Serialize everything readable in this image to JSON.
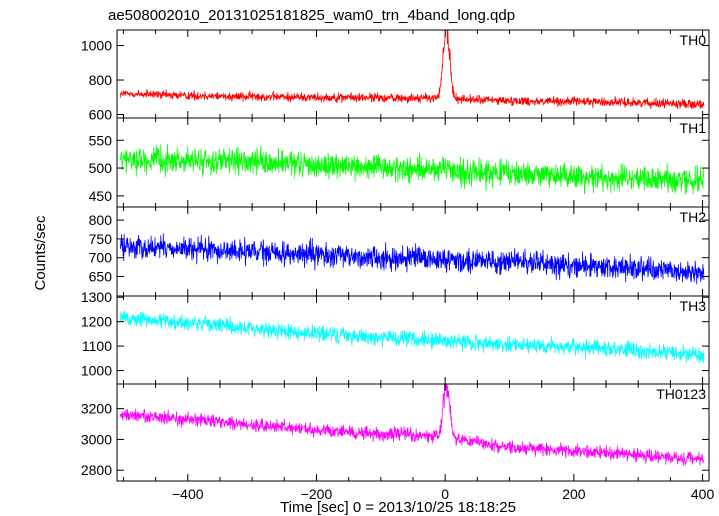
{
  "chart_data": {
    "type": "line",
    "title": "ae508002010_20131025181825_wam0_trn_4band_long.qdp",
    "xlabel": "Time [sec] 0 = 2013/10/25 18:18:25",
    "ylabel": "Counts/sec",
    "xlim": [
      -510,
      410
    ],
    "xticks": [
      -400,
      -200,
      0,
      200,
      400
    ],
    "grid": false,
    "panels": [
      {
        "name": "TH0",
        "color": "#ff0000",
        "ylim": [
          580,
          1090
        ],
        "yticks": [
          600,
          800,
          1000
        ],
        "baseline": [
          [
            -500,
            720
          ],
          [
            -400,
            710
          ],
          [
            -200,
            700
          ],
          [
            -20,
            695
          ],
          [
            100,
            680
          ],
          [
            300,
            670
          ],
          [
            400,
            660
          ]
        ],
        "noise": 28,
        "burst": {
          "peak_time": 2,
          "peak_value": 1090,
          "width": 5
        }
      },
      {
        "name": "TH1",
        "color": "#00ff00",
        "ylim": [
          430,
          590
        ],
        "yticks": [
          450,
          500,
          550
        ],
        "baseline": [
          [
            -500,
            515
          ],
          [
            -300,
            510
          ],
          [
            -100,
            500
          ],
          [
            100,
            490
          ],
          [
            300,
            480
          ],
          [
            400,
            478
          ]
        ],
        "noise": 24,
        "burst": null
      },
      {
        "name": "TH2",
        "color": "#0000ff",
        "ylim": [
          598,
          835
        ],
        "yticks": [
          650,
          700,
          750,
          800
        ],
        "baseline": [
          [
            -500,
            730
          ],
          [
            -300,
            715
          ],
          [
            -100,
            700
          ],
          [
            100,
            690
          ],
          [
            300,
            670
          ],
          [
            400,
            660
          ]
        ],
        "noise": 33,
        "burst": null
      },
      {
        "name": "TH3",
        "color": "#00ffff",
        "ylim": [
          945,
          1305
        ],
        "yticks": [
          1000,
          1100,
          1200,
          1300
        ],
        "baseline": [
          [
            -500,
            1215
          ],
          [
            -400,
            1195
          ],
          [
            -200,
            1150
          ],
          [
            0,
            1120
          ],
          [
            200,
            1095
          ],
          [
            400,
            1065
          ]
        ],
        "noise": 35,
        "burst": null
      },
      {
        "name": "TH0123",
        "color": "#ff00ff",
        "ylim": [
          2730,
          3360
        ],
        "yticks": [
          2800,
          3000,
          3200
        ],
        "baseline": [
          [
            -500,
            3160
          ],
          [
            -400,
            3130
          ],
          [
            -200,
            3060
          ],
          [
            -20,
            3020
          ],
          [
            100,
            2950
          ],
          [
            300,
            2900
          ],
          [
            400,
            2870
          ]
        ],
        "noise": 45,
        "burst": {
          "peak_time": 2,
          "peak_value": 3360,
          "width": 5
        }
      }
    ]
  }
}
